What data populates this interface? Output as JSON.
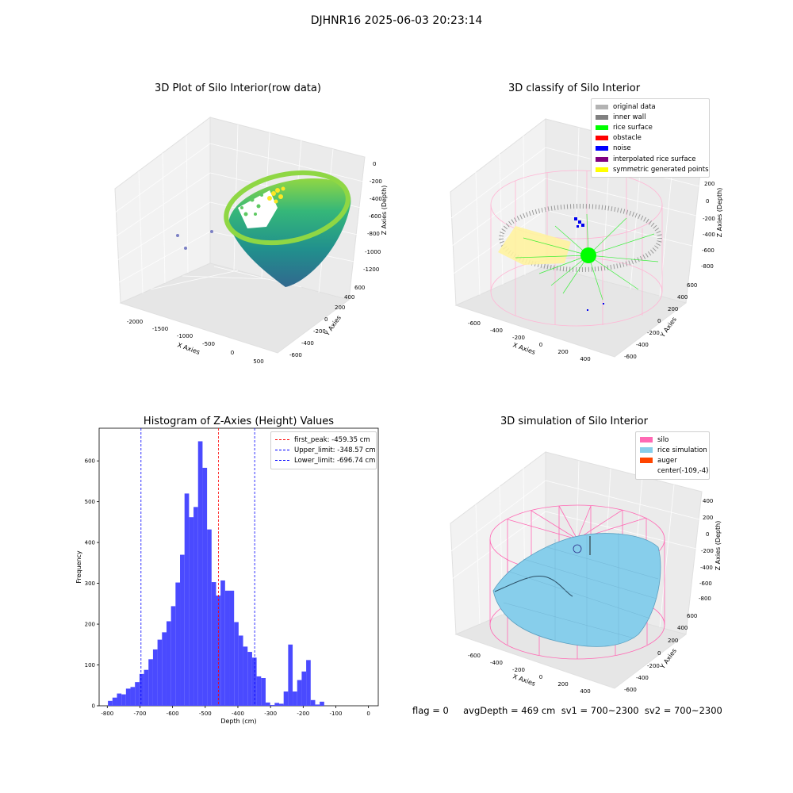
{
  "suptitle": "DJHNR16 2025-06-03 20:23:14",
  "panel_tl": {
    "title": "3D Plot of Silo Interior(row data)",
    "xlabel": "X Axies",
    "ylabel": "Y Axies",
    "zlabel": "Z Axies (Depth)",
    "xticks": [
      "-2000",
      "-1500",
      "-1000",
      "-500",
      "0",
      "500"
    ],
    "yticks": [
      "-600",
      "-400",
      "-200",
      "0",
      "200",
      "400",
      "600"
    ],
    "zticks": [
      "0",
      "-200",
      "-400",
      "-600",
      "-800",
      "-1000",
      "-1200"
    ]
  },
  "panel_tr": {
    "title": "3D classify of Silo Interior",
    "xlabel": "X Axies",
    "ylabel": "Y Axies",
    "zlabel": "Z Axies (Depth)",
    "xticks": [
      "-600",
      "-400",
      "-200",
      "0",
      "200",
      "400"
    ],
    "yticks": [
      "-600",
      "-400",
      "-200",
      "0",
      "200",
      "400",
      "600"
    ],
    "zticks": [
      "200",
      "0",
      "-200",
      "-400",
      "-600",
      "-800"
    ],
    "legend": [
      {
        "label": "original data",
        "color": "#b3b3b3"
      },
      {
        "label": "inner wall",
        "color": "#808080"
      },
      {
        "label": "rice surface",
        "color": "#00ff00"
      },
      {
        "label": "obstacle",
        "color": "#ff0000"
      },
      {
        "label": "noise",
        "color": "#0000ff"
      },
      {
        "label": "interpolated rice surface",
        "color": "#800080"
      },
      {
        "label": "symmetric generated points",
        "color": "#ffff00"
      }
    ]
  },
  "panel_br": {
    "title": "3D simulation of Silo Interior",
    "xlabel": "X Axies",
    "ylabel": "Y Axies",
    "zlabel": "Z Axies (Depth)",
    "xticks": [
      "-600",
      "-400",
      "-200",
      "0",
      "200",
      "400"
    ],
    "yticks": [
      "-600",
      "-400",
      "-200",
      "0",
      "200",
      "400",
      "600"
    ],
    "zticks": [
      "400",
      "200",
      "0",
      "-200",
      "-400",
      "-600",
      "-800"
    ],
    "legend": [
      {
        "label": "silo",
        "color": "#ff69b4"
      },
      {
        "label": "rice simulation",
        "color": "#87ceeb"
      },
      {
        "label": "auger",
        "color": "#ff4500"
      },
      {
        "label": "center(-109,-4)",
        "color": ""
      }
    ]
  },
  "footer": {
    "text": "flag = 0     avgDepth = 469 cm  sv1 = 700~2300  sv2 = 700~2300"
  },
  "chart_data": [
    {
      "type": "bar",
      "title": "Histogram of Z-Axies (Height) Values",
      "xlabel": "Depth (cm)",
      "ylabel": "Frequency",
      "xlim": [
        -825,
        30
      ],
      "ylim": [
        0,
        680
      ],
      "xticks": [
        -800,
        -700,
        -600,
        -500,
        -400,
        -300,
        -200,
        -100,
        0
      ],
      "yticks": [
        0,
        100,
        200,
        300,
        400,
        500,
        600
      ],
      "bar_color": "#4a4aff",
      "bin_width": 13.8,
      "bins_start": -798,
      "values": [
        12,
        20,
        30,
        28,
        42,
        46,
        58,
        78,
        88,
        114,
        138,
        162,
        180,
        207,
        244,
        302,
        370,
        520,
        462,
        487,
        648,
        583,
        432,
        303,
        270,
        307,
        282,
        282,
        205,
        172,
        145,
        132,
        118,
        72,
        68,
        8,
        2,
        7,
        5,
        35,
        150,
        35,
        63,
        84,
        112,
        14,
        3,
        10
      ],
      "vlines": [
        {
          "x": -459.35,
          "color": "#ff0000",
          "label": "first_peak: -459.35 cm"
        },
        {
          "x": -348.57,
          "color": "#0000ff",
          "label": "Upper_limit: -348.57 cm"
        },
        {
          "x": -696.74,
          "color": "#0000ff",
          "label": "Lower_limit: -696.74 cm"
        }
      ],
      "legend_position": "top-right"
    }
  ]
}
